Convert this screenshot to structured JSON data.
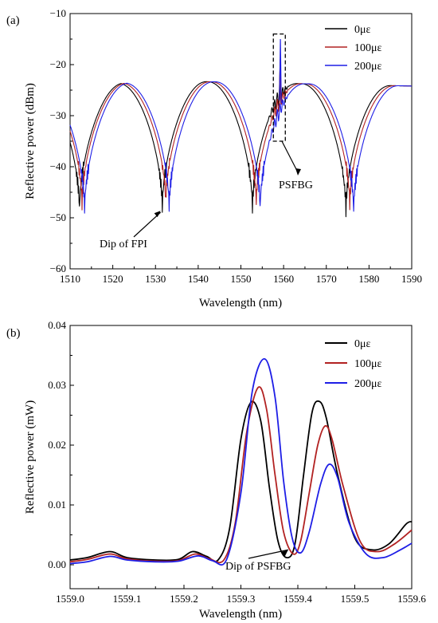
{
  "chart_data": [
    {
      "type": "line",
      "panel_label": "(a)",
      "xlabel": "Wavelength (nm)",
      "ylabel": "Reflective power (dBm)",
      "xlim": [
        1510,
        1590
      ],
      "ylim": [
        -60,
        -10
      ],
      "xticks": [
        1510,
        1520,
        1530,
        1540,
        1550,
        1560,
        1570,
        1580,
        1590
      ],
      "yticks": [
        -60,
        -50,
        -40,
        -30,
        -20,
        -10
      ],
      "grid": false,
      "legend_position": "top-right",
      "series": [
        {
          "name": "0με",
          "color": "#000000",
          "fpi_dips": [
            1512.2,
            1531.6,
            1552.7,
            1574.6
          ],
          "fbg_peak": -21,
          "dip_depth": -48
        },
        {
          "name": "100με",
          "color": "#b22222",
          "fpi_dips": [
            1512.8,
            1532.4,
            1553.6,
            1575.5
          ],
          "fbg_peak": -19,
          "dip_depth": -47
        },
        {
          "name": "200με",
          "color": "#1e1ee6",
          "fpi_dips": [
            1513.4,
            1533.2,
            1554.5,
            1576.4
          ],
          "fbg_peak": -15,
          "dip_depth": -48
        }
      ],
      "annotations": [
        {
          "text": "Dip of FPI",
          "x": 1531.6,
          "y": -47
        },
        {
          "text": "PSFBG",
          "x": 1559.0,
          "y": -35
        }
      ],
      "highlight_box": {
        "x": [
          1557.6,
          1560.4
        ],
        "y": [
          -35,
          -14
        ]
      }
    },
    {
      "type": "line",
      "panel_label": "(b)",
      "xlabel": "Wavelength (nm)",
      "ylabel": "Reflective power (mW)",
      "xlim": [
        1559.0,
        1559.6
      ],
      "ylim": [
        -0.004,
        0.04
      ],
      "xticks": [
        1559.0,
        1559.1,
        1559.2,
        1559.3,
        1559.4,
        1559.5,
        1559.6
      ],
      "yticks": [
        0.0,
        0.01,
        0.02,
        0.03,
        0.04
      ],
      "tick_labels_x": [
        "1559.0",
        "1559.1",
        "1559.2",
        "1559.3",
        "1559.4",
        "1559.5",
        "1559.6"
      ],
      "tick_labels_y": [
        "0.00",
        "0.01",
        "0.02",
        "0.03",
        "0.04"
      ],
      "grid": false,
      "legend_position": "top-right",
      "series": [
        {
          "name": "0με",
          "color": "#000000",
          "x": [
            1559.0,
            1559.03,
            1559.07,
            1559.1,
            1559.15,
            1559.19,
            1559.215,
            1559.24,
            1559.26,
            1559.28,
            1559.3,
            1559.318,
            1559.335,
            1559.35,
            1559.365,
            1559.38,
            1559.395,
            1559.41,
            1559.425,
            1559.438,
            1559.45,
            1559.47,
            1559.5,
            1559.53,
            1559.56,
            1559.59,
            1559.6
          ],
          "y": [
            0.0008,
            0.0012,
            0.0022,
            0.0012,
            0.0008,
            0.0009,
            0.0022,
            0.0014,
            0.0008,
            0.006,
            0.021,
            0.0272,
            0.024,
            0.013,
            0.004,
            0.0012,
            0.0035,
            0.015,
            0.0255,
            0.0273,
            0.0245,
            0.015,
            0.0045,
            0.0025,
            0.0035,
            0.0068,
            0.0072
          ]
        },
        {
          "name": "100με",
          "color": "#b22222",
          "x": [
            1559.0,
            1559.03,
            1559.07,
            1559.1,
            1559.15,
            1559.19,
            1559.22,
            1559.245,
            1559.27,
            1559.29,
            1559.31,
            1559.33,
            1559.345,
            1559.36,
            1559.375,
            1559.392,
            1559.405,
            1559.42,
            1559.435,
            1559.448,
            1559.46,
            1559.48,
            1559.51,
            1559.54,
            1559.57,
            1559.6
          ],
          "y": [
            0.0005,
            0.0009,
            0.0018,
            0.001,
            0.0006,
            0.0007,
            0.0018,
            0.001,
            0.0008,
            0.007,
            0.022,
            0.0296,
            0.026,
            0.015,
            0.0055,
            0.0018,
            0.004,
            0.012,
            0.02,
            0.0232,
            0.021,
            0.013,
            0.0038,
            0.0022,
            0.0035,
            0.0058
          ]
        },
        {
          "name": "200με",
          "color": "#1e1ee6",
          "x": [
            1559.0,
            1559.03,
            1559.07,
            1559.1,
            1559.15,
            1559.19,
            1559.225,
            1559.25,
            1559.275,
            1559.3,
            1559.32,
            1559.342,
            1559.36,
            1559.375,
            1559.39,
            1559.405,
            1559.42,
            1559.44,
            1559.455,
            1559.47,
            1559.49,
            1559.52,
            1559.55,
            1559.58,
            1559.6
          ],
          "y": [
            0.0002,
            0.0005,
            0.0014,
            0.0008,
            0.0005,
            0.0006,
            0.0015,
            0.0007,
            0.0009,
            0.012,
            0.029,
            0.0344,
            0.028,
            0.014,
            0.0045,
            0.002,
            0.0055,
            0.0135,
            0.0168,
            0.0145,
            0.007,
            0.0018,
            0.0012,
            0.0025,
            0.0036
          ]
        }
      ],
      "annotations": [
        {
          "text": "Dip of PSFBG",
          "x": 1559.38,
          "y": 0.0015
        }
      ]
    }
  ]
}
